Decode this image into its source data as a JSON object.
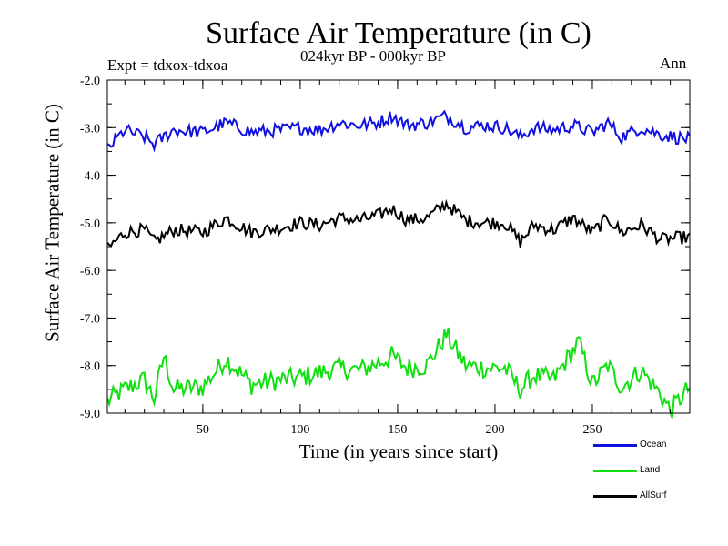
{
  "chart_data": {
    "type": "line",
    "title": "Surface Air Temperature (in C)",
    "subtitle_period": "024kyr BP - 000kyr BP",
    "subtitle_expt": "Expt = tdxox-tdxoa",
    "subtitle_season": "Ann",
    "xlabel": "Time (in years since start)",
    "ylabel": "Surface Air Temperature (in C)",
    "xlim": [
      1,
      300
    ],
    "ylim": [
      -9.0,
      -2.0
    ],
    "xticks": [
      50,
      100,
      150,
      200,
      250
    ],
    "yticks": [
      -2.0,
      -3.0,
      -4.0,
      -5.0,
      -6.0,
      -7.0,
      -8.0,
      -9.0
    ],
    "ytick_labels": [
      "-2.0",
      "-3.0",
      "-4.0",
      "-5.0",
      "-6.0",
      "-7.0",
      "-8.0",
      "-9.0"
    ],
    "grid": false,
    "legend_position": "bottom-right",
    "series": [
      {
        "name": "Ocean",
        "color": "#1010e0",
        "points": [
          [
            1,
            -3.45
          ],
          [
            10,
            -3.05
          ],
          [
            20,
            -3.2
          ],
          [
            25,
            -3.35
          ],
          [
            35,
            -3.05
          ],
          [
            50,
            -3.1
          ],
          [
            62,
            -2.9
          ],
          [
            75,
            -3.1
          ],
          [
            90,
            -3.05
          ],
          [
            100,
            -3.0
          ],
          [
            110,
            -3.05
          ],
          [
            120,
            -2.9
          ],
          [
            130,
            -2.95
          ],
          [
            140,
            -2.9
          ],
          [
            147,
            -2.75
          ],
          [
            155,
            -2.95
          ],
          [
            165,
            -2.9
          ],
          [
            175,
            -2.75
          ],
          [
            185,
            -3.0
          ],
          [
            195,
            -2.95
          ],
          [
            205,
            -3.0
          ],
          [
            213,
            -3.2
          ],
          [
            220,
            -3.0
          ],
          [
            230,
            -3.05
          ],
          [
            240,
            -2.95
          ],
          [
            250,
            -3.1
          ],
          [
            258,
            -2.9
          ],
          [
            265,
            -3.2
          ],
          [
            275,
            -3.0
          ],
          [
            285,
            -3.15
          ],
          [
            300,
            -3.25
          ]
        ]
      },
      {
        "name": "Land",
        "color": "#10e010",
        "points": [
          [
            1,
            -8.75
          ],
          [
            10,
            -8.5
          ],
          [
            20,
            -8.3
          ],
          [
            25,
            -8.7
          ],
          [
            30,
            -7.8
          ],
          [
            35,
            -8.5
          ],
          [
            50,
            -8.45
          ],
          [
            62,
            -7.85
          ],
          [
            75,
            -8.4
          ],
          [
            90,
            -8.3
          ],
          [
            100,
            -8.25
          ],
          [
            110,
            -8.15
          ],
          [
            120,
            -8.05
          ],
          [
            130,
            -8.1
          ],
          [
            140,
            -7.95
          ],
          [
            147,
            -7.8
          ],
          [
            155,
            -8.05
          ],
          [
            165,
            -8.0
          ],
          [
            175,
            -7.35
          ],
          [
            185,
            -8.0
          ],
          [
            195,
            -8.05
          ],
          [
            205,
            -8.05
          ],
          [
            213,
            -8.5
          ],
          [
            220,
            -8.2
          ],
          [
            230,
            -8.3
          ],
          [
            243,
            -7.5
          ],
          [
            250,
            -8.4
          ],
          [
            258,
            -8.0
          ],
          [
            265,
            -8.45
          ],
          [
            275,
            -8.1
          ],
          [
            285,
            -8.6
          ],
          [
            290,
            -8.95
          ],
          [
            300,
            -8.45
          ]
        ]
      },
      {
        "name": "AllSurf",
        "color": "#000000",
        "points": [
          [
            1,
            -5.55
          ],
          [
            10,
            -5.2
          ],
          [
            20,
            -5.15
          ],
          [
            25,
            -5.4
          ],
          [
            35,
            -5.15
          ],
          [
            50,
            -5.2
          ],
          [
            62,
            -4.9
          ],
          [
            75,
            -5.2
          ],
          [
            90,
            -5.1
          ],
          [
            100,
            -5.0
          ],
          [
            110,
            -5.05
          ],
          [
            120,
            -4.9
          ],
          [
            130,
            -4.95
          ],
          [
            140,
            -4.85
          ],
          [
            147,
            -4.7
          ],
          [
            155,
            -4.95
          ],
          [
            165,
            -4.9
          ],
          [
            175,
            -4.6
          ],
          [
            185,
            -4.95
          ],
          [
            195,
            -5.0
          ],
          [
            205,
            -5.0
          ],
          [
            213,
            -5.4
          ],
          [
            220,
            -5.05
          ],
          [
            230,
            -5.15
          ],
          [
            240,
            -4.9
          ],
          [
            250,
            -5.2
          ],
          [
            258,
            -4.9
          ],
          [
            265,
            -5.2
          ],
          [
            275,
            -5.05
          ],
          [
            285,
            -5.35
          ],
          [
            300,
            -5.3
          ]
        ]
      }
    ]
  }
}
